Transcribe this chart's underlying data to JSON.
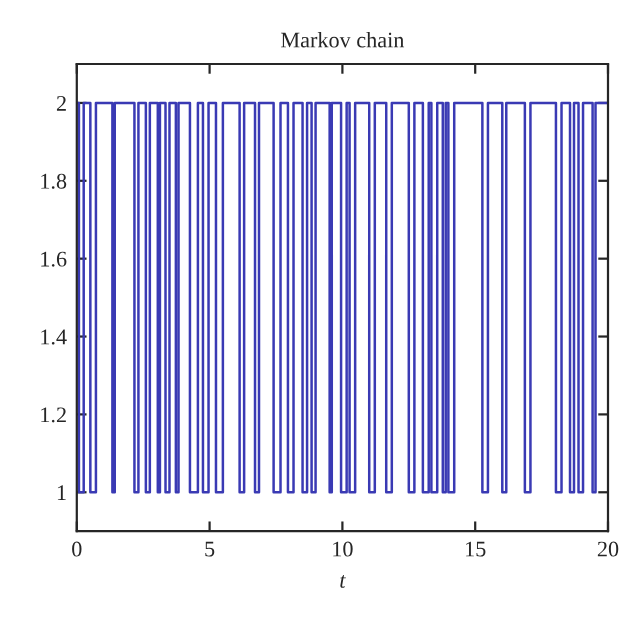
{
  "chart_data": {
    "type": "step",
    "title": "Markov chain",
    "xlabel": "t",
    "x": [
      0,
      0.08,
      0.26,
      0.51,
      0.72,
      1.34,
      1.43,
      2.17,
      2.32,
      2.6,
      2.75,
      3.05,
      3.13,
      3.34,
      3.49,
      3.73,
      3.83,
      4.26,
      4.56,
      4.75,
      4.96,
      5.24,
      5.5,
      6.13,
      6.3,
      6.71,
      6.86,
      7.41,
      7.67,
      7.95,
      8.16,
      8.5,
      8.67,
      8.84,
      8.99,
      9.52,
      9.6,
      9.95,
      10.16,
      10.27,
      10.48,
      11.01,
      11.22,
      11.65,
      11.86,
      12.5,
      12.71,
      13.03,
      13.25,
      13.35,
      13.57,
      13.78,
      13.89,
      13.99,
      14.21,
      15.27,
      15.48,
      16.02,
      16.17,
      16.87,
      17.08,
      18.04,
      18.25,
      18.57,
      18.72,
      18.89,
      19.06,
      19.42,
      19.53,
      20
    ],
    "series": [
      {
        "color": "#3a3ab4",
        "values": [
          2,
          1,
          2,
          1,
          2,
          1,
          2,
          1,
          2,
          1,
          2,
          1,
          2,
          1,
          2,
          1,
          2,
          1,
          2,
          1,
          2,
          1,
          2,
          1,
          2,
          1,
          2,
          1,
          2,
          1,
          2,
          1,
          2,
          1,
          2,
          1,
          2,
          1,
          2,
          1,
          2,
          1,
          2,
          1,
          2,
          1,
          2,
          1,
          2,
          1,
          2,
          1,
          2,
          1,
          2,
          1,
          2,
          1,
          2,
          1,
          2,
          1,
          2,
          1,
          2,
          1,
          2,
          1,
          2,
          2
        ]
      }
    ],
    "xlim": [
      0,
      20
    ],
    "xticks": [
      0,
      5,
      10,
      15,
      20
    ],
    "ylim": [
      0.9,
      2.1
    ],
    "yticks": [
      1,
      1.2,
      1.4,
      1.6,
      1.8,
      2
    ],
    "grid": false,
    "legend": false
  }
}
